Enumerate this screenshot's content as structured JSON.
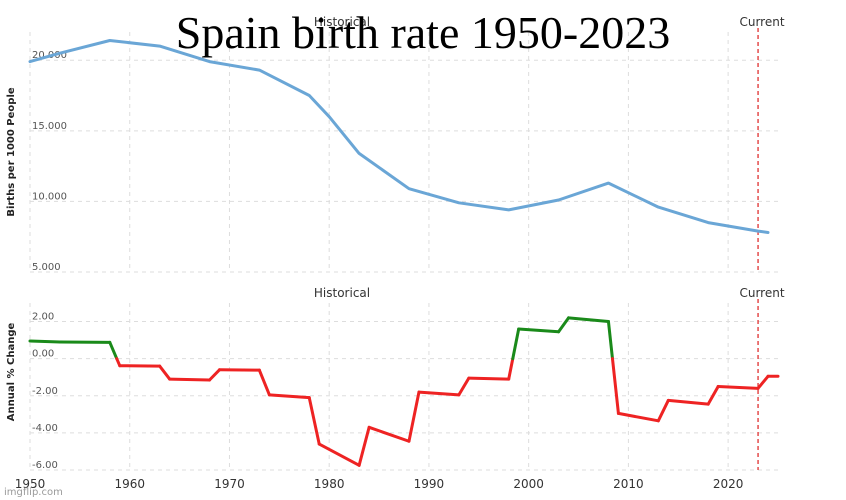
{
  "meme": {
    "title": "Spain birth rate 1950-2023",
    "watermark": "imgflip.com"
  },
  "colors": {
    "line": "#6aa6d6",
    "positive": "#1a8a1a",
    "negative": "#ee2323",
    "current_marker": "#e03030",
    "grid": "#dddddd"
  },
  "chart_data": [
    {
      "type": "line",
      "section_label_historical": "Historical",
      "section_label_current": "Current",
      "ylabel": "Births per 1000 People",
      "ylim": [
        5,
        22
      ],
      "yticks": [
        5,
        10,
        15,
        20
      ],
      "ytick_labels": [
        "5.000",
        "10.000",
        "15.000",
        "20.000"
      ],
      "xlim": [
        1950,
        2025
      ],
      "current_year": 2023,
      "grid": true,
      "series": [
        {
          "x": [
            1950,
            1953,
            1958,
            1963,
            1968,
            1973,
            1978,
            1980,
            1983,
            1988,
            1993,
            1998,
            2003,
            2008,
            2013,
            2018,
            2023,
            2024
          ],
          "values": [
            19.9,
            20.5,
            21.4,
            21.0,
            19.9,
            19.3,
            17.5,
            16.0,
            13.4,
            10.9,
            9.9,
            9.4,
            10.1,
            11.3,
            9.6,
            8.5,
            7.9,
            7.8
          ]
        }
      ]
    },
    {
      "type": "line",
      "section_label_historical": "Historical",
      "section_label_current": "Current",
      "ylabel": "Annual % Change",
      "ylim": [
        -6,
        3
      ],
      "yticks": [
        -6,
        -4,
        -2,
        0,
        2
      ],
      "ytick_labels": [
        "-6.00",
        "-4.00",
        "-2.00",
        "0.00",
        "2.00"
      ],
      "xlim": [
        1950,
        2025
      ],
      "xticks": [
        1950,
        1960,
        1970,
        1980,
        1990,
        2000,
        2010,
        2020
      ],
      "xtick_labels": [
        "1950",
        "1960",
        "1970",
        "1980",
        "1990",
        "2000",
        "2010",
        "2020"
      ],
      "current_year": 2023,
      "grid": true,
      "series": [
        {
          "x": [
            1950,
            1953,
            1958,
            1959,
            1963,
            1964,
            1968,
            1969,
            1973,
            1974,
            1978,
            1979,
            1983,
            1984,
            1988,
            1989,
            1993,
            1994,
            1998,
            1999,
            2003,
            2004,
            2008,
            2009,
            2013,
            2014,
            2018,
            2019,
            2023,
            2024,
            2025
          ],
          "values": [
            0.95,
            0.9,
            0.88,
            -0.38,
            -0.4,
            -1.1,
            -1.15,
            -0.6,
            -0.62,
            -1.95,
            -2.1,
            -4.6,
            -5.75,
            -3.7,
            -4.45,
            -1.8,
            -1.95,
            -1.05,
            -1.1,
            1.6,
            1.45,
            2.2,
            2.0,
            -2.95,
            -3.35,
            -2.25,
            -2.45,
            -1.5,
            -1.6,
            -0.95,
            -0.95
          ]
        }
      ]
    }
  ]
}
